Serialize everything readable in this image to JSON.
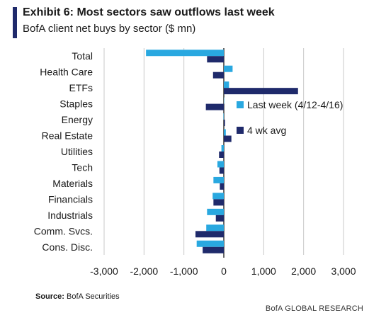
{
  "header": {
    "title": "Exhibit 6: Most sectors saw outflows last week",
    "subtitle": "BofA client net buys by sector ($ mn)"
  },
  "footer": {
    "source_label": "Source:",
    "source_text": "BofA Securities",
    "brand": "BofA GLOBAL RESEARCH"
  },
  "colors": {
    "last_week": "#29a8e0",
    "four_wk_avg": "#1f2a6b",
    "grid": "#c8c8c8",
    "axis": "#000000",
    "accent": "#1f2a6b"
  },
  "chart_data": {
    "type": "bar",
    "orientation": "horizontal",
    "categories": [
      "Total",
      "Health Care",
      "ETFs",
      "Staples",
      "Energy",
      "Real Estate",
      "Utilities",
      "Tech",
      "Materials",
      "Financials",
      "Industrials",
      "Comm. Svcs.",
      "Cons. Disc."
    ],
    "series": [
      {
        "name": "Last week (4/12-4/16)",
        "values": [
          -1950,
          220,
          130,
          0,
          -10,
          50,
          -60,
          -160,
          -260,
          -280,
          -420,
          -440,
          -680
        ]
      },
      {
        "name": "4 wk avg",
        "values": [
          -420,
          -270,
          1860,
          -450,
          30,
          190,
          -120,
          -110,
          -100,
          -260,
          -200,
          -710,
          -530
        ]
      }
    ],
    "xlim": [
      -3000,
      3000
    ],
    "xticks": [
      "-3,000",
      "-2,000",
      "-1,000",
      "0",
      "1,000",
      "2,000",
      "3,000"
    ],
    "xtick_values": [
      -3000,
      -2000,
      -1000,
      0,
      1000,
      2000,
      3000
    ],
    "grid": "vertical",
    "legend_position": "right-inside"
  }
}
